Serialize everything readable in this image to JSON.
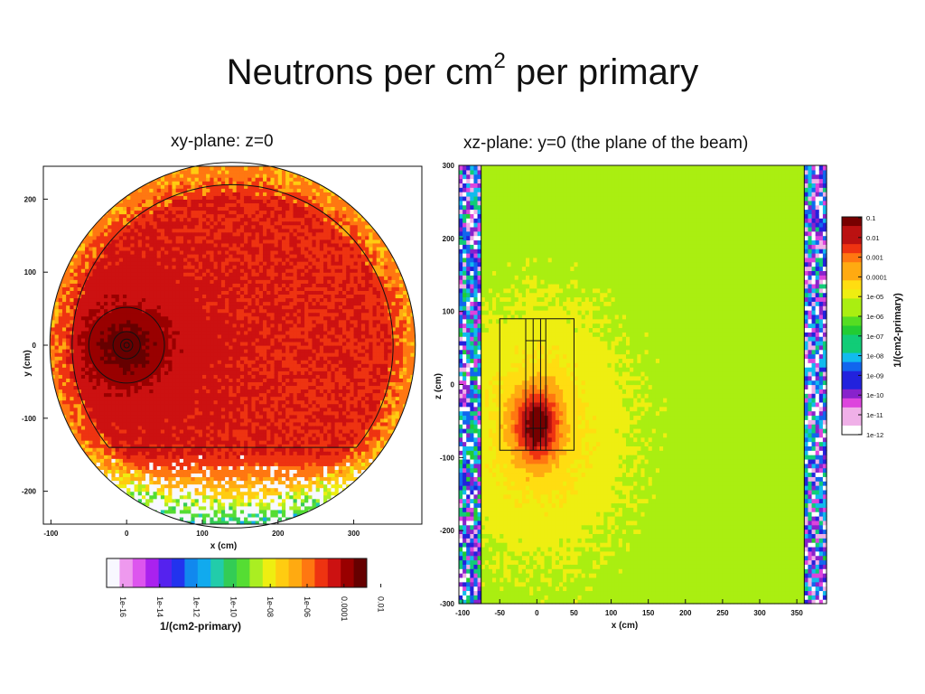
{
  "slide": {
    "title": "Neutrons per cm",
    "title_sup": "2",
    "title_end": " per primary",
    "left_subtitle": "xy-plane: z=0",
    "right_subtitle": "xz-plane: y=0 (the plane of the beam)"
  },
  "chart_data": [
    {
      "type": "heatmap",
      "title": "xy-plane: z=0",
      "xlabel": "x (cm)",
      "ylabel": "y (cm)",
      "xlim": [
        -110,
        390
      ],
      "ylim": [
        -245,
        245
      ],
      "x_ticks": [
        -100,
        0,
        100,
        200,
        300
      ],
      "y_ticks": [
        -200,
        -100,
        0,
        100,
        200
      ],
      "colorbar": {
        "label": "1/(cm2-primary)",
        "orientation": "horizontal",
        "tick_labels": [
          "1e-16",
          "1e-14",
          "1e-12",
          "1e-10",
          "1e-08",
          "1e-06",
          "0.0001",
          "0.01"
        ],
        "log_range": [
          -16,
          -1
        ]
      },
      "colors": [
        "#f8f8ff",
        "#ee99ee",
        "#dd55ee",
        "#aa22ee",
        "#5522ee",
        "#2233ee",
        "#1188ee",
        "#11aaee",
        "#22ccaa",
        "#33cc55",
        "#55dd33",
        "#aaee22",
        "#eeee11",
        "#ffcc11",
        "#ffaa11",
        "#ff7711",
        "#ee3311",
        "#cc1111",
        "#990000",
        "#660000"
      ],
      "description_values": {
        "background_level": 0.001,
        "hotspot_center": [
          0,
          0
        ],
        "hotspot_level": 0.05
      }
    },
    {
      "type": "heatmap",
      "title": "xz-plane: y=0 (the plane of the beam)",
      "xlabel": "x (cm)",
      "ylabel": "z (cm)",
      "xlim": [
        -105,
        390
      ],
      "ylim": [
        -300,
        300
      ],
      "x_ticks": [
        -100,
        -50,
        0,
        50,
        100,
        150,
        200,
        250,
        300,
        350
      ],
      "y_ticks": [
        -300,
        -200,
        -100,
        0,
        100,
        200,
        300
      ],
      "colorbar": {
        "label": "1/(cm2-primary)",
        "orientation": "vertical",
        "tick_labels": [
          "0.1",
          "0.01",
          "0.001",
          "0.0001",
          "1e-05",
          "1e-06",
          "1e-07",
          "1e-08",
          "1e-09",
          "1e-10",
          "1e-11",
          "1e-12"
        ],
        "log_range": [
          -12,
          -1
        ]
      },
      "colors": [
        "#ffffff",
        "#f0b0e8",
        "#dd44dd",
        "#8822cc",
        "#2222dd",
        "#1166ee",
        "#11bbee",
        "#11cc77",
        "#22cc33",
        "#55dd22",
        "#aaee11",
        "#eeee11",
        "#ffdd11",
        "#ffaa11",
        "#ff7711",
        "#ee3311",
        "#bb1111",
        "#770000"
      ],
      "description_values": {
        "background_level": 1e-06,
        "hotspot_center": [
          0,
          -60
        ],
        "hotspot_level": 0.01
      }
    }
  ]
}
